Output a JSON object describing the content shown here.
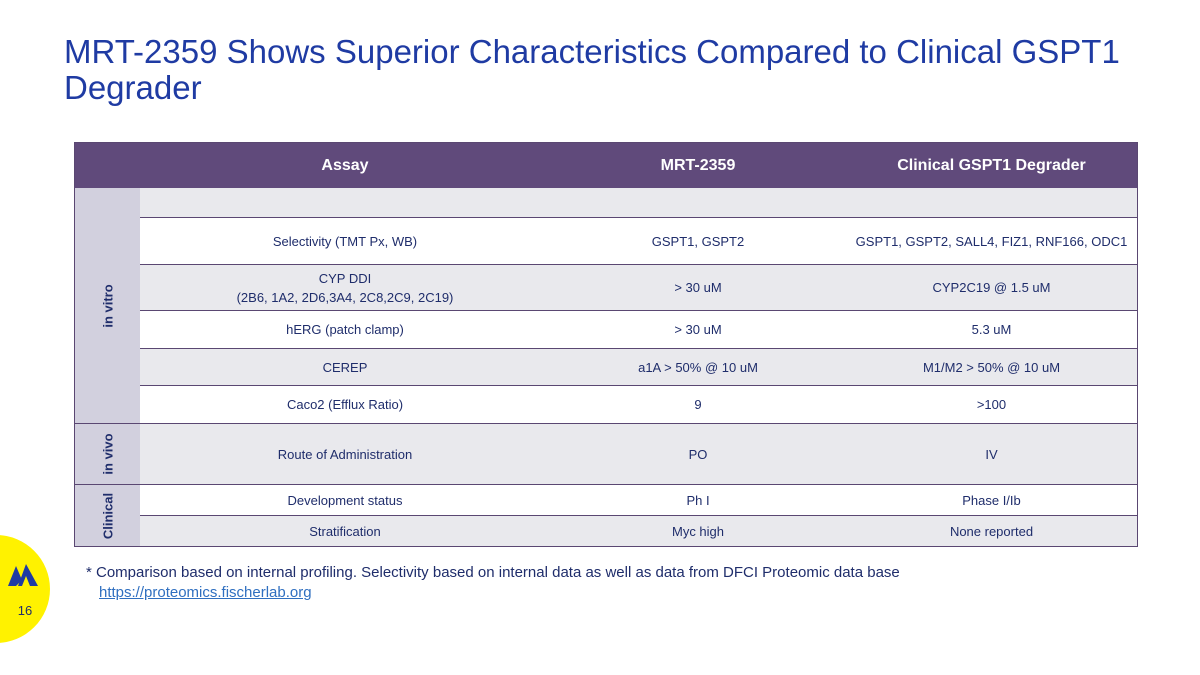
{
  "slide": {
    "title": "MRT-2359 Shows Superior Characteristics Compared to Clinical GSPT1 Degrader",
    "page_number": "16"
  },
  "table": {
    "headers": [
      "Assay",
      "MRT-2359",
      "Clinical GSPT1 Degrader"
    ],
    "groups": [
      {
        "label": "in vitro"
      },
      {
        "label": "in vivo"
      },
      {
        "label": "Clinical"
      }
    ],
    "rows": [
      {
        "assay": "",
        "mrt": "",
        "clinical": ""
      },
      {
        "assay": "Selectivity (TMT Px, WB)",
        "mrt": "GSPT1, GSPT2",
        "clinical": "GSPT1, GSPT2, SALL4, FIZ1, RNF166, ODC1"
      },
      {
        "assay_line1": "CYP DDI",
        "assay_line2": "(2B6, 1A2, 2D6,3A4, 2C8,2C9, 2C19)",
        "mrt": "> 30 uM",
        "clinical": "CYP2C19 @ 1.5 uM"
      },
      {
        "assay": "hERG (patch clamp)",
        "mrt": "> 30 uM",
        "clinical": "5.3 uM"
      },
      {
        "assay": "CEREP",
        "mrt": "a1A > 50% @ 10 uM",
        "clinical": "M1/M2 > 50% @ 10 uM"
      },
      {
        "assay": "Caco2 (Efflux Ratio)",
        "mrt": "9",
        "clinical": ">100"
      },
      {
        "assay": "Route of Administration",
        "mrt": "PO",
        "clinical": "IV"
      },
      {
        "assay": "Development status",
        "mrt": "Ph I",
        "clinical": "Phase I/Ib"
      },
      {
        "assay": "Stratification",
        "mrt": "Myc high",
        "clinical": "None reported"
      }
    ]
  },
  "footnote": {
    "text": "* Comparison based on internal profiling. Selectivity based on internal data as well as data from DFCI Proteomic data base",
    "link": "https://proteomics.fischerlab.org"
  },
  "colors": {
    "title": "#1f3ba3",
    "header_bg": "#604a7b",
    "group_bg": "#d2d0de",
    "row_shade": "#e9e9ed",
    "badge": "#fff200"
  }
}
